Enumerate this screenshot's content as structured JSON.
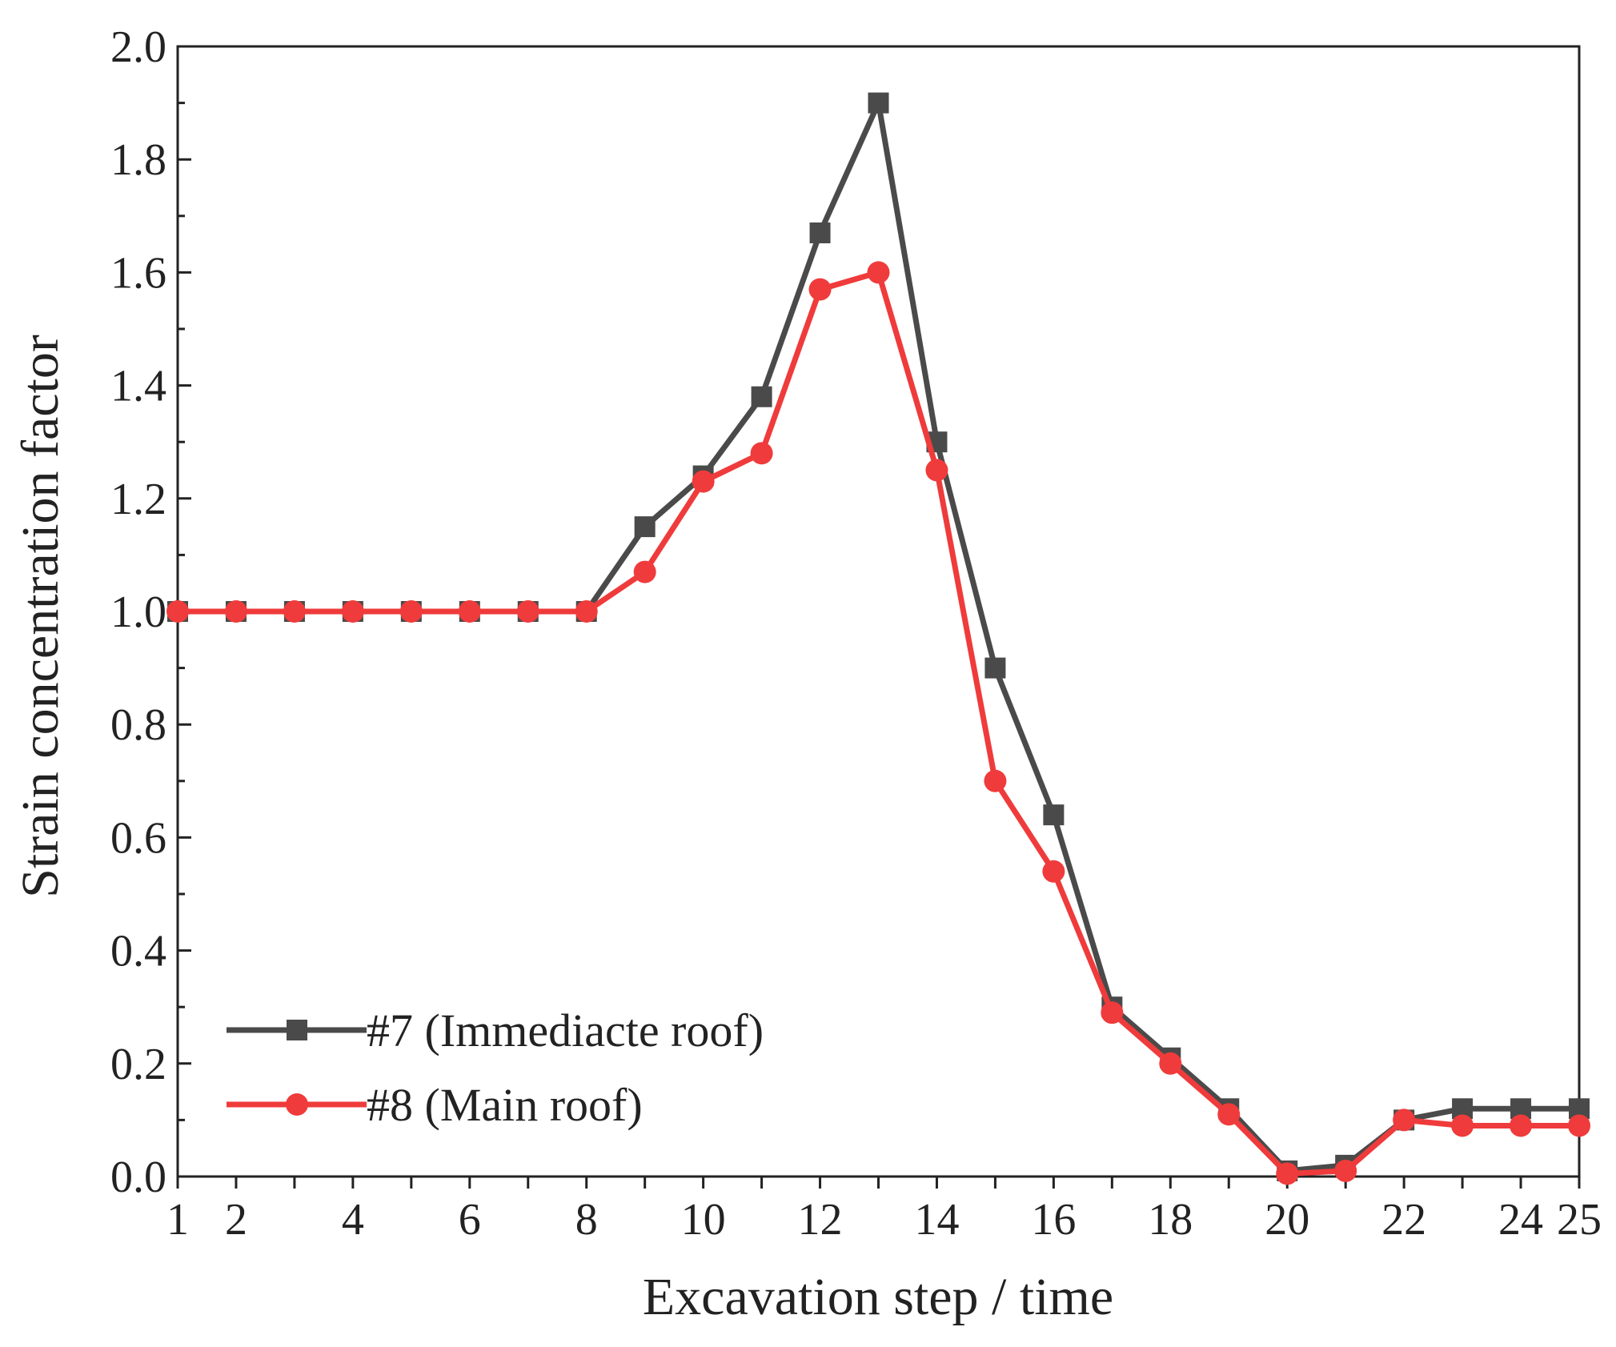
{
  "chart_data": {
    "type": "line",
    "title": "",
    "xlabel": "Excavation step / time",
    "ylabel": "Strain concentration factor",
    "xlim": [
      1,
      25
    ],
    "ylim": [
      0,
      2.0
    ],
    "x_ticks": [
      "1",
      "2",
      "4",
      "6",
      "8",
      "10",
      "12",
      "14",
      "16",
      "18",
      "20",
      "22",
      "24",
      "25"
    ],
    "y_ticks": [
      "0.0",
      "0.2",
      "0.4",
      "0.6",
      "0.8",
      "1.0",
      "1.2",
      "1.4",
      "1.6",
      "1.8",
      "2.0"
    ],
    "legend_position": "bottom-left",
    "x": [
      1,
      2,
      3,
      4,
      5,
      6,
      7,
      8,
      9,
      10,
      11,
      12,
      13,
      14,
      15,
      16,
      17,
      18,
      19,
      20,
      21,
      22,
      23,
      24,
      25
    ],
    "series": [
      {
        "name": "#7 (Immediacte roof)",
        "marker": "square",
        "color": "#4a4a4a",
        "values": [
          1.0,
          1.0,
          1.0,
          1.0,
          1.0,
          1.0,
          1.0,
          1.0,
          1.15,
          1.24,
          1.38,
          1.67,
          1.9,
          1.3,
          0.9,
          0.64,
          0.3,
          0.21,
          0.12,
          0.01,
          0.02,
          0.1,
          0.12,
          0.12,
          0.12
        ]
      },
      {
        "name": "#8 (Main roof)",
        "marker": "circle",
        "color": "#ef3b3b",
        "values": [
          1.0,
          1.0,
          1.0,
          1.0,
          1.0,
          1.0,
          1.0,
          1.0,
          1.07,
          1.23,
          1.28,
          1.57,
          1.6,
          1.25,
          0.7,
          0.54,
          0.29,
          0.2,
          0.11,
          0.005,
          0.01,
          0.1,
          0.09,
          0.09,
          0.09
        ]
      }
    ]
  }
}
